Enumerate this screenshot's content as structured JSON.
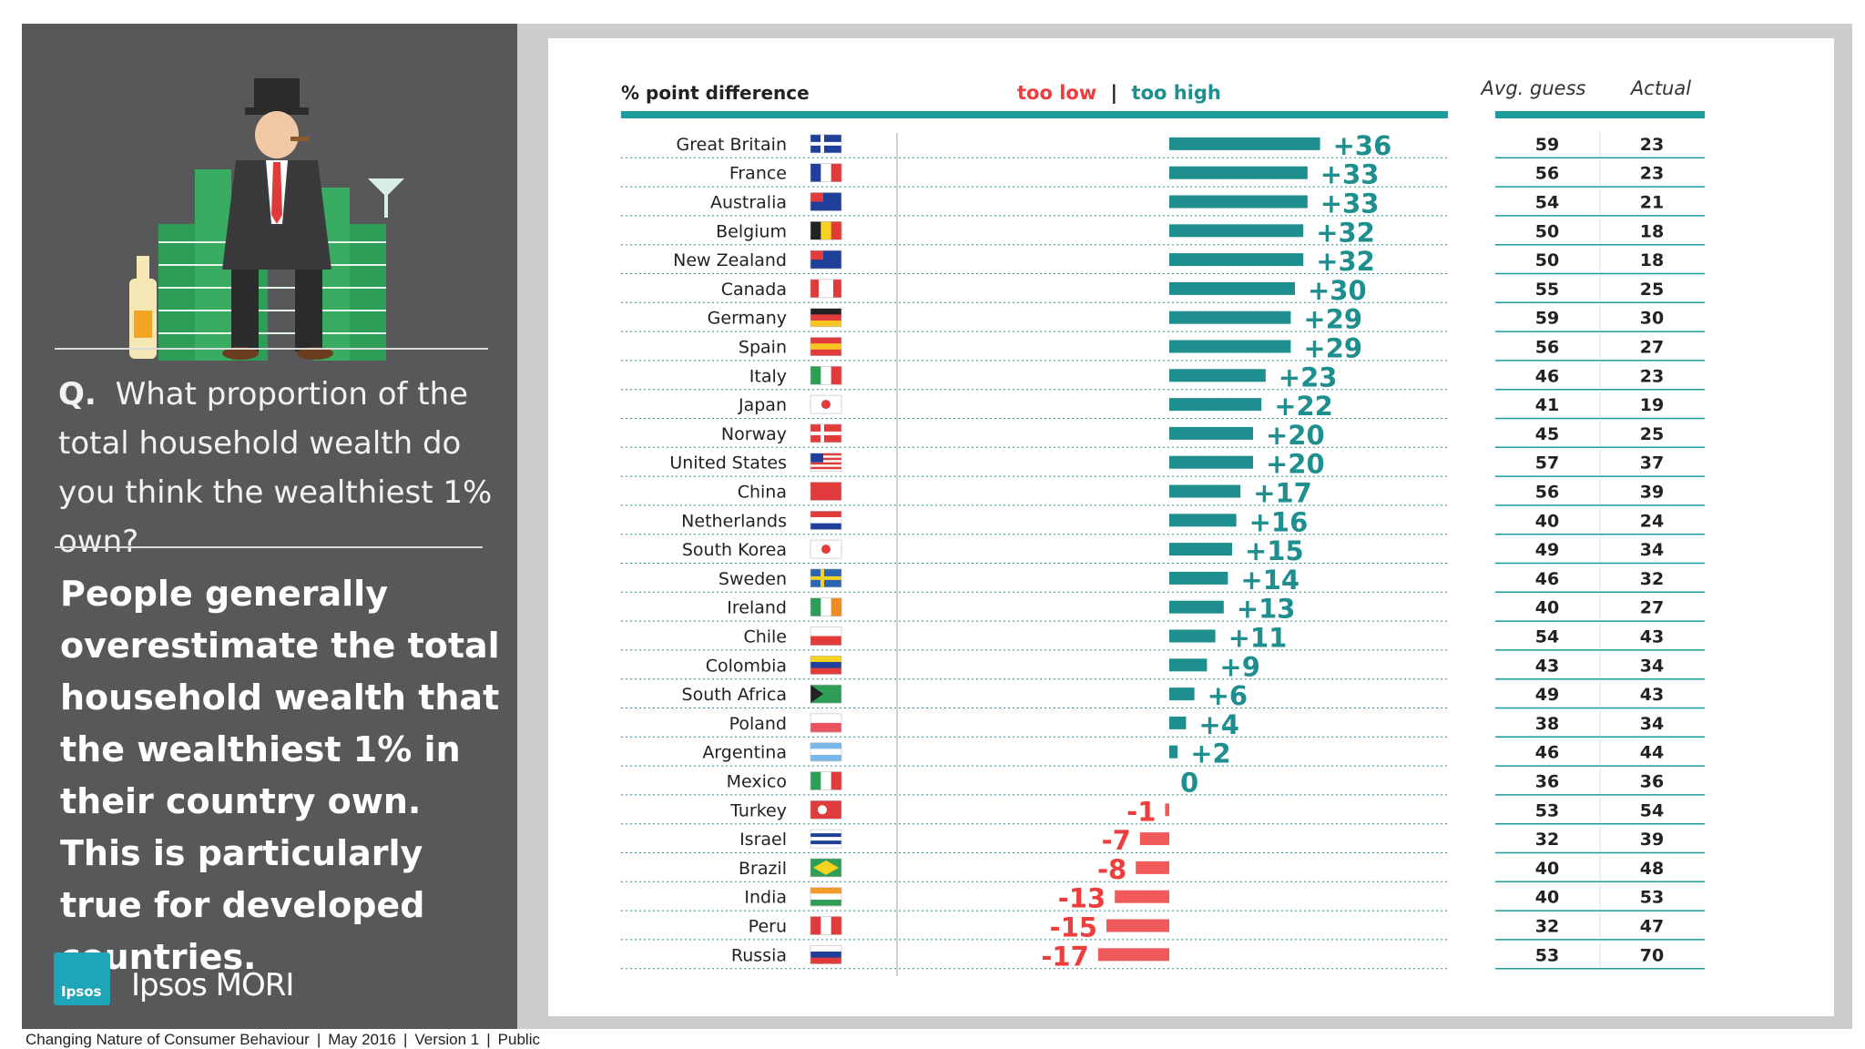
{
  "left_panel": {
    "question_prefix": "Q.",
    "question": "What proportion of the total household wealth do you think the wealthiest 1% own?",
    "takeaway": "People generally overestimate the total household wealth that the wealthiest 1% in their country own. This is particularly true for developed countries.",
    "logo_mark": "Ipsos",
    "logo_text": "Ipsos MORI"
  },
  "footer": {
    "title": "Changing Nature of Consumer Behaviour",
    "date": "May 2016",
    "version": "Version 1",
    "classification": "Public"
  },
  "colors": {
    "too_high": "#1e8e8e",
    "too_low": "#ee3d3d",
    "bar_low": "#f05a5a",
    "header_bar": "#1e9a9a"
  },
  "chart_data": {
    "type": "bar",
    "orientation": "horizontal",
    "title": "% point difference",
    "legend": {
      "too_low": "too low",
      "separator": "|",
      "too_high": "too high"
    },
    "columns": {
      "guess": "Avg. guess",
      "actual": "Actual"
    },
    "xlim": [
      -20,
      40
    ],
    "rows": [
      {
        "country": "Great Britain",
        "flag": "uk-flag",
        "diff": 36,
        "label": "+36",
        "guess": 59,
        "actual": 23
      },
      {
        "country": "France",
        "flag": "france-flag",
        "diff": 33,
        "label": "+33",
        "guess": 56,
        "actual": 23
      },
      {
        "country": "Australia",
        "flag": "australia-flag",
        "diff": 33,
        "label": "+33",
        "guess": 54,
        "actual": 21
      },
      {
        "country": "Belgium",
        "flag": "belgium-flag",
        "diff": 32,
        "label": "+32",
        "guess": 50,
        "actual": 18
      },
      {
        "country": "New Zealand",
        "flag": "new-zealand-flag",
        "diff": 32,
        "label": "+32",
        "guess": 50,
        "actual": 18
      },
      {
        "country": "Canada",
        "flag": "canada-flag",
        "diff": 30,
        "label": "+30",
        "guess": 55,
        "actual": 25
      },
      {
        "country": "Germany",
        "flag": "germany-flag",
        "diff": 29,
        "label": "+29",
        "guess": 59,
        "actual": 30
      },
      {
        "country": "Spain",
        "flag": "spain-flag",
        "diff": 29,
        "label": "+29",
        "guess": 56,
        "actual": 27
      },
      {
        "country": "Italy",
        "flag": "italy-flag",
        "diff": 23,
        "label": "+23",
        "guess": 46,
        "actual": 23
      },
      {
        "country": "Japan",
        "flag": "japan-flag",
        "diff": 22,
        "label": "+22",
        "guess": 41,
        "actual": 19
      },
      {
        "country": "Norway",
        "flag": "norway-flag",
        "diff": 20,
        "label": "+20",
        "guess": 45,
        "actual": 25
      },
      {
        "country": "United States",
        "flag": "usa-flag",
        "diff": 20,
        "label": "+20",
        "guess": 57,
        "actual": 37
      },
      {
        "country": "China",
        "flag": "china-flag",
        "diff": 17,
        "label": "+17",
        "guess": 56,
        "actual": 39
      },
      {
        "country": "Netherlands",
        "flag": "netherlands-flag",
        "diff": 16,
        "label": "+16",
        "guess": 40,
        "actual": 24
      },
      {
        "country": "South Korea",
        "flag": "south-korea-flag",
        "diff": 15,
        "label": "+15",
        "guess": 49,
        "actual": 34
      },
      {
        "country": "Sweden",
        "flag": "sweden-flag",
        "diff": 14,
        "label": "+14",
        "guess": 46,
        "actual": 32
      },
      {
        "country": "Ireland",
        "flag": "ireland-flag",
        "diff": 13,
        "label": "+13",
        "guess": 40,
        "actual": 27
      },
      {
        "country": "Chile",
        "flag": "chile-flag",
        "diff": 11,
        "label": "+11",
        "guess": 54,
        "actual": 43
      },
      {
        "country": "Colombia",
        "flag": "colombia-flag",
        "diff": 9,
        "label": "+9",
        "guess": 43,
        "actual": 34
      },
      {
        "country": "South Africa",
        "flag": "south-africa-flag",
        "diff": 6,
        "label": "+6",
        "guess": 49,
        "actual": 43
      },
      {
        "country": "Poland",
        "flag": "poland-flag",
        "diff": 4,
        "label": "+4",
        "guess": 38,
        "actual": 34
      },
      {
        "country": "Argentina",
        "flag": "argentina-flag",
        "diff": 2,
        "label": "+2",
        "guess": 46,
        "actual": 44
      },
      {
        "country": "Mexico",
        "flag": "mexico-flag",
        "diff": 0,
        "label": "0",
        "guess": 36,
        "actual": 36
      },
      {
        "country": "Turkey",
        "flag": "turkey-flag",
        "diff": -1,
        "label": "-1",
        "guess": 53,
        "actual": 54
      },
      {
        "country": "Israel",
        "flag": "israel-flag",
        "diff": -7,
        "label": "-7",
        "guess": 32,
        "actual": 39
      },
      {
        "country": "Brazil",
        "flag": "brazil-flag",
        "diff": -8,
        "label": "-8",
        "guess": 40,
        "actual": 48
      },
      {
        "country": "India",
        "flag": "india-flag",
        "diff": -13,
        "label": "-13",
        "guess": 40,
        "actual": 53
      },
      {
        "country": "Peru",
        "flag": "peru-flag",
        "diff": -15,
        "label": "-15",
        "guess": 32,
        "actual": 47
      },
      {
        "country": "Russia",
        "flag": "russia-flag",
        "diff": -17,
        "label": "-17",
        "guess": 53,
        "actual": 70
      }
    ]
  }
}
